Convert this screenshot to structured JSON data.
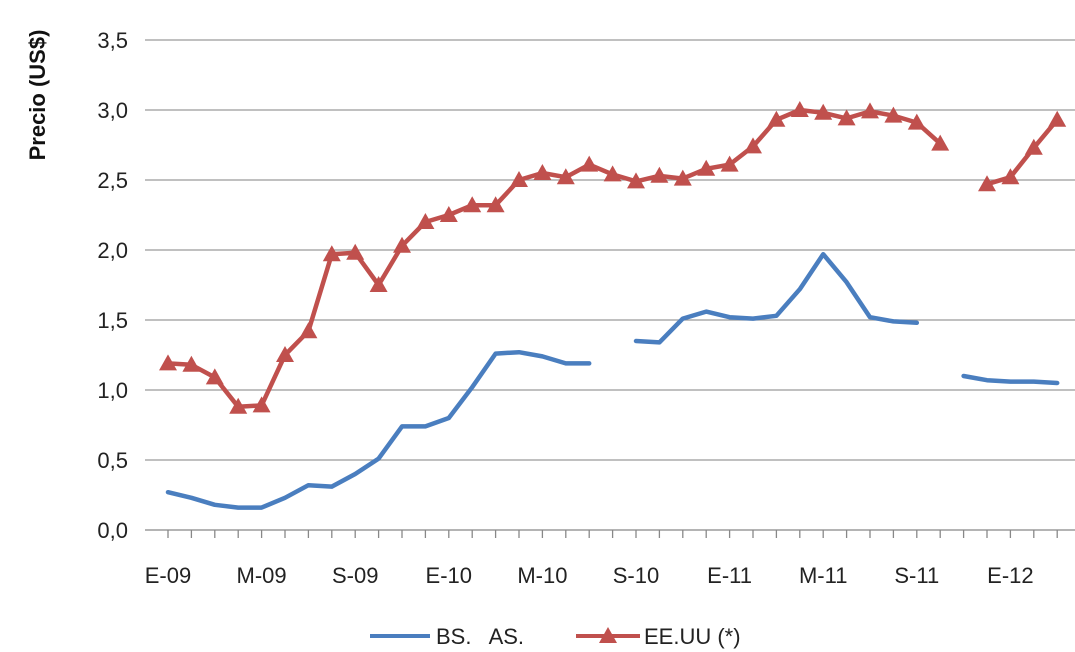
{
  "chart_data": {
    "type": "line",
    "ylabel": "Precio (US$)",
    "xlabel": "",
    "ylim": [
      0,
      3.5
    ],
    "yticks": [
      "0,0",
      "0,5",
      "1,0",
      "1,5",
      "2,0",
      "2,5",
      "3,0",
      "3,5"
    ],
    "x_tick_labels": [
      "E-09",
      "M-09",
      "S-09",
      "E-10",
      "M-10",
      "S-10",
      "E-11",
      "M-11",
      "S-11",
      "E-12"
    ],
    "grid": "horizontal",
    "legend_position": "bottom",
    "x_months_start": "E-09",
    "series": [
      {
        "name": "BS.   AS.",
        "color": "#4a7ebf",
        "marker": "none",
        "values": [
          0.27,
          0.23,
          0.18,
          0.16,
          0.16,
          0.23,
          0.32,
          0.31,
          0.4,
          0.51,
          0.74,
          0.74,
          0.8,
          1.02,
          1.26,
          1.27,
          1.24,
          1.19,
          1.19,
          null,
          1.35,
          1.34,
          1.51,
          1.56,
          1.52,
          1.51,
          1.53,
          1.72,
          1.97,
          1.77,
          1.52,
          1.49,
          1.48,
          null,
          1.1,
          1.07,
          1.06,
          1.06,
          1.05
        ]
      },
      {
        "name": "EE.UU (*)",
        "color": "#c0504d",
        "marker": "triangle",
        "values": [
          1.19,
          1.18,
          1.09,
          0.88,
          0.89,
          1.25,
          1.42,
          1.97,
          1.98,
          1.75,
          2.03,
          2.2,
          2.25,
          2.32,
          2.32,
          2.5,
          2.55,
          2.52,
          2.61,
          2.54,
          2.49,
          2.53,
          2.51,
          2.58,
          2.61,
          2.74,
          2.93,
          3.0,
          2.98,
          2.94,
          2.99,
          2.96,
          2.91,
          2.76,
          null,
          2.47,
          2.52,
          2.73,
          2.93
        ]
      }
    ]
  }
}
